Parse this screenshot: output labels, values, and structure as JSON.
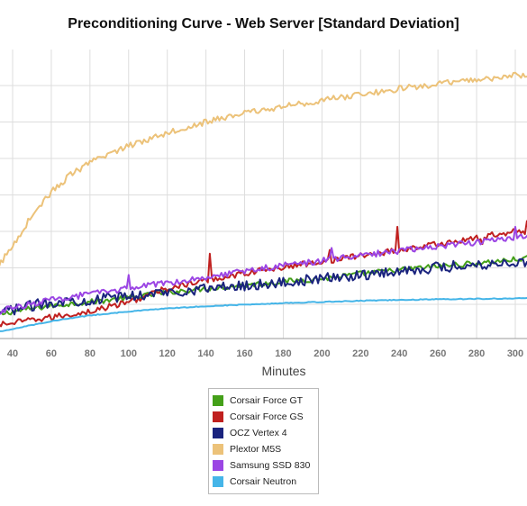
{
  "chart_data": {
    "type": "line",
    "title": "Preconditioning Curve - Web Server [Standard Deviation]",
    "xlabel": "Minutes",
    "ylabel": "",
    "x_ticks": [
      40,
      60,
      80,
      100,
      120,
      140,
      160,
      180,
      200,
      220,
      240,
      260,
      280,
      300
    ],
    "xlim": [
      30,
      310
    ],
    "y_gridlines": 7,
    "grid": true,
    "legend_position": "bottom-center",
    "series": [
      {
        "name": "Corsair Force GT",
        "color": "#44a019",
        "x": [
          30,
          40,
          60,
          80,
          100,
          120,
          140,
          160,
          180,
          200,
          220,
          240,
          260,
          280,
          300,
          310
        ],
        "y": [
          0.6,
          0.7,
          0.85,
          0.95,
          1.05,
          1.2,
          1.3,
          1.38,
          1.48,
          1.55,
          1.68,
          1.78,
          1.88,
          1.95,
          2.05,
          2.1
        ]
      },
      {
        "name": "Corsair Force GS",
        "color": "#c0201f",
        "x": [
          30,
          40,
          60,
          80,
          100,
          120,
          140,
          160,
          180,
          200,
          220,
          240,
          260,
          280,
          300,
          310
        ],
        "y": [
          0.35,
          0.4,
          0.55,
          0.7,
          0.95,
          1.3,
          1.5,
          1.7,
          1.85,
          2.0,
          2.15,
          2.3,
          2.45,
          2.6,
          2.8,
          2.7
        ],
        "spikes": [
          [
            142,
            2.2
          ],
          [
            204,
            2.3
          ],
          [
            239,
            2.9
          ],
          [
            283,
            2.45
          ],
          [
            296,
            2.75
          ],
          [
            306,
            3.05
          ]
        ]
      },
      {
        "name": "OCZ Vertex 4",
        "color": "#1a237e",
        "x": [
          30,
          40,
          60,
          80,
          100,
          120,
          140,
          160,
          180,
          200,
          220,
          240,
          260,
          280,
          300,
          310
        ],
        "y": [
          0.65,
          0.75,
          0.95,
          1.0,
          1.1,
          1.2,
          1.3,
          1.38,
          1.45,
          1.55,
          1.65,
          1.75,
          1.85,
          1.92,
          1.98,
          2.0
        ]
      },
      {
        "name": "Plextor M5S",
        "color": "#ecc279",
        "x": [
          30,
          40,
          50,
          60,
          70,
          80,
          90,
          100,
          120,
          140,
          160,
          180,
          200,
          220,
          240,
          260,
          280,
          300,
          310
        ],
        "y": [
          1.7,
          2.4,
          3.2,
          3.8,
          4.25,
          4.55,
          4.8,
          5.0,
          5.35,
          5.62,
          5.85,
          6.02,
          6.18,
          6.33,
          6.48,
          6.6,
          6.72,
          6.82,
          6.85
        ]
      },
      {
        "name": "Samsung SSD 830",
        "color": "#9b45e4",
        "x": [
          30,
          40,
          60,
          80,
          100,
          120,
          140,
          160,
          180,
          200,
          220,
          240,
          260,
          280,
          300,
          310
        ],
        "y": [
          0.65,
          0.8,
          1.0,
          1.15,
          1.3,
          1.45,
          1.6,
          1.75,
          1.9,
          2.02,
          2.15,
          2.28,
          2.4,
          2.5,
          2.62,
          2.7
        ],
        "spikes": [
          [
            100,
            1.65
          ],
          [
            205,
            2.35
          ],
          [
            300,
            2.9
          ]
        ]
      },
      {
        "name": "Corsair Neutron",
        "color": "#45b5e8",
        "x": [
          30,
          40,
          60,
          80,
          100,
          120,
          140,
          160,
          180,
          200,
          220,
          240,
          260,
          280,
          300,
          310
        ],
        "y": [
          0.15,
          0.25,
          0.45,
          0.6,
          0.7,
          0.78,
          0.84,
          0.88,
          0.92,
          0.95,
          0.98,
          1.0,
          1.02,
          1.03,
          1.04,
          1.05
        ]
      }
    ]
  }
}
